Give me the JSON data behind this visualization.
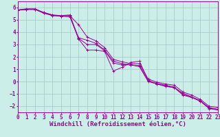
{
  "background_color": "#cceee8",
  "grid_color": "#aacccc",
  "line_color": "#990099",
  "xlabel": "Windchill (Refroidissement éolien,°C)",
  "xlabel_fontsize": 6.5,
  "tick_fontsize": 5.5,
  "xlim": [
    0,
    23
  ],
  "ylim": [
    -2.5,
    6.5
  ],
  "yticks": [
    -2,
    -1,
    0,
    1,
    2,
    3,
    4,
    5,
    6
  ],
  "xticks": [
    0,
    1,
    2,
    3,
    4,
    5,
    6,
    7,
    8,
    9,
    10,
    11,
    12,
    13,
    14,
    15,
    16,
    17,
    18,
    19,
    20,
    21,
    22,
    23
  ],
  "series": [
    [
      5.8,
      5.85,
      5.85,
      5.6,
      5.4,
      5.35,
      5.4,
      3.55,
      3.35,
      3.1,
      2.55,
      1.65,
      1.45,
      1.35,
      1.3,
      0.05,
      -0.15,
      -0.3,
      -0.45,
      -1.05,
      -1.25,
      -1.55,
      -2.15,
      -2.3
    ],
    [
      5.8,
      5.85,
      5.85,
      5.55,
      5.35,
      5.3,
      5.35,
      4.6,
      3.6,
      3.3,
      2.75,
      1.8,
      1.6,
      1.45,
      1.45,
      0.2,
      -0.05,
      -0.2,
      -0.3,
      -0.85,
      -1.1,
      -1.45,
      -2.0,
      -2.1
    ],
    [
      5.8,
      5.85,
      5.85,
      5.55,
      5.35,
      5.3,
      5.35,
      3.45,
      2.55,
      2.55,
      2.45,
      0.85,
      1.15,
      1.55,
      1.65,
      0.1,
      -0.2,
      -0.4,
      -0.5,
      -0.95,
      -1.25,
      -1.6,
      -2.1,
      -2.25
    ],
    [
      5.8,
      5.9,
      5.9,
      5.6,
      5.4,
      5.3,
      5.25,
      3.5,
      3.0,
      3.0,
      2.5,
      1.5,
      1.35,
      1.35,
      1.2,
      0.0,
      -0.2,
      -0.35,
      -0.5,
      -1.1,
      -1.3,
      -1.6,
      -2.2,
      -2.3
    ]
  ]
}
